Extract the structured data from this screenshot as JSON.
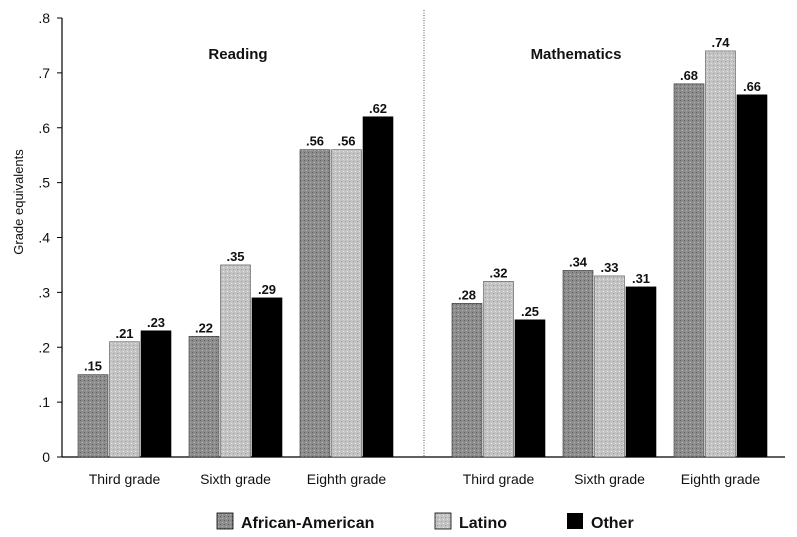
{
  "chart_data": {
    "type": "bar",
    "ylabel": "Grade equivalents",
    "ylim": [
      0,
      0.8
    ],
    "ytick_labels": [
      "0",
      ".1",
      ".2",
      ".3",
      ".4",
      ".5",
      ".6",
      ".7",
      ".8"
    ],
    "legend_position": "bottom",
    "series_colors": [
      "#8c8c8c",
      "#c4c4c4",
      "#000000"
    ],
    "series": [
      {
        "name": "African-American"
      },
      {
        "name": "Latino"
      },
      {
        "name": "Other"
      }
    ],
    "panels": [
      {
        "title": "Reading",
        "categories": [
          "Third grade",
          "Sixth grade",
          "Eighth grade"
        ],
        "values": [
          [
            0.15,
            0.21,
            0.23
          ],
          [
            0.22,
            0.35,
            0.29
          ],
          [
            0.56,
            0.56,
            0.62
          ]
        ],
        "value_labels": [
          [
            ".15",
            ".21",
            ".23"
          ],
          [
            ".22",
            ".35",
            ".29"
          ],
          [
            ".56",
            ".56",
            ".62"
          ]
        ]
      },
      {
        "title": "Mathematics",
        "categories": [
          "Third grade",
          "Sixth grade",
          "Eighth grade"
        ],
        "values": [
          [
            0.28,
            0.32,
            0.25
          ],
          [
            0.34,
            0.33,
            0.31
          ],
          [
            0.68,
            0.74,
            0.66
          ]
        ],
        "value_labels": [
          [
            ".28",
            ".32",
            ".25"
          ],
          [
            ".34",
            ".33",
            ".31"
          ],
          [
            ".68",
            ".74",
            ".66"
          ]
        ]
      }
    ]
  }
}
